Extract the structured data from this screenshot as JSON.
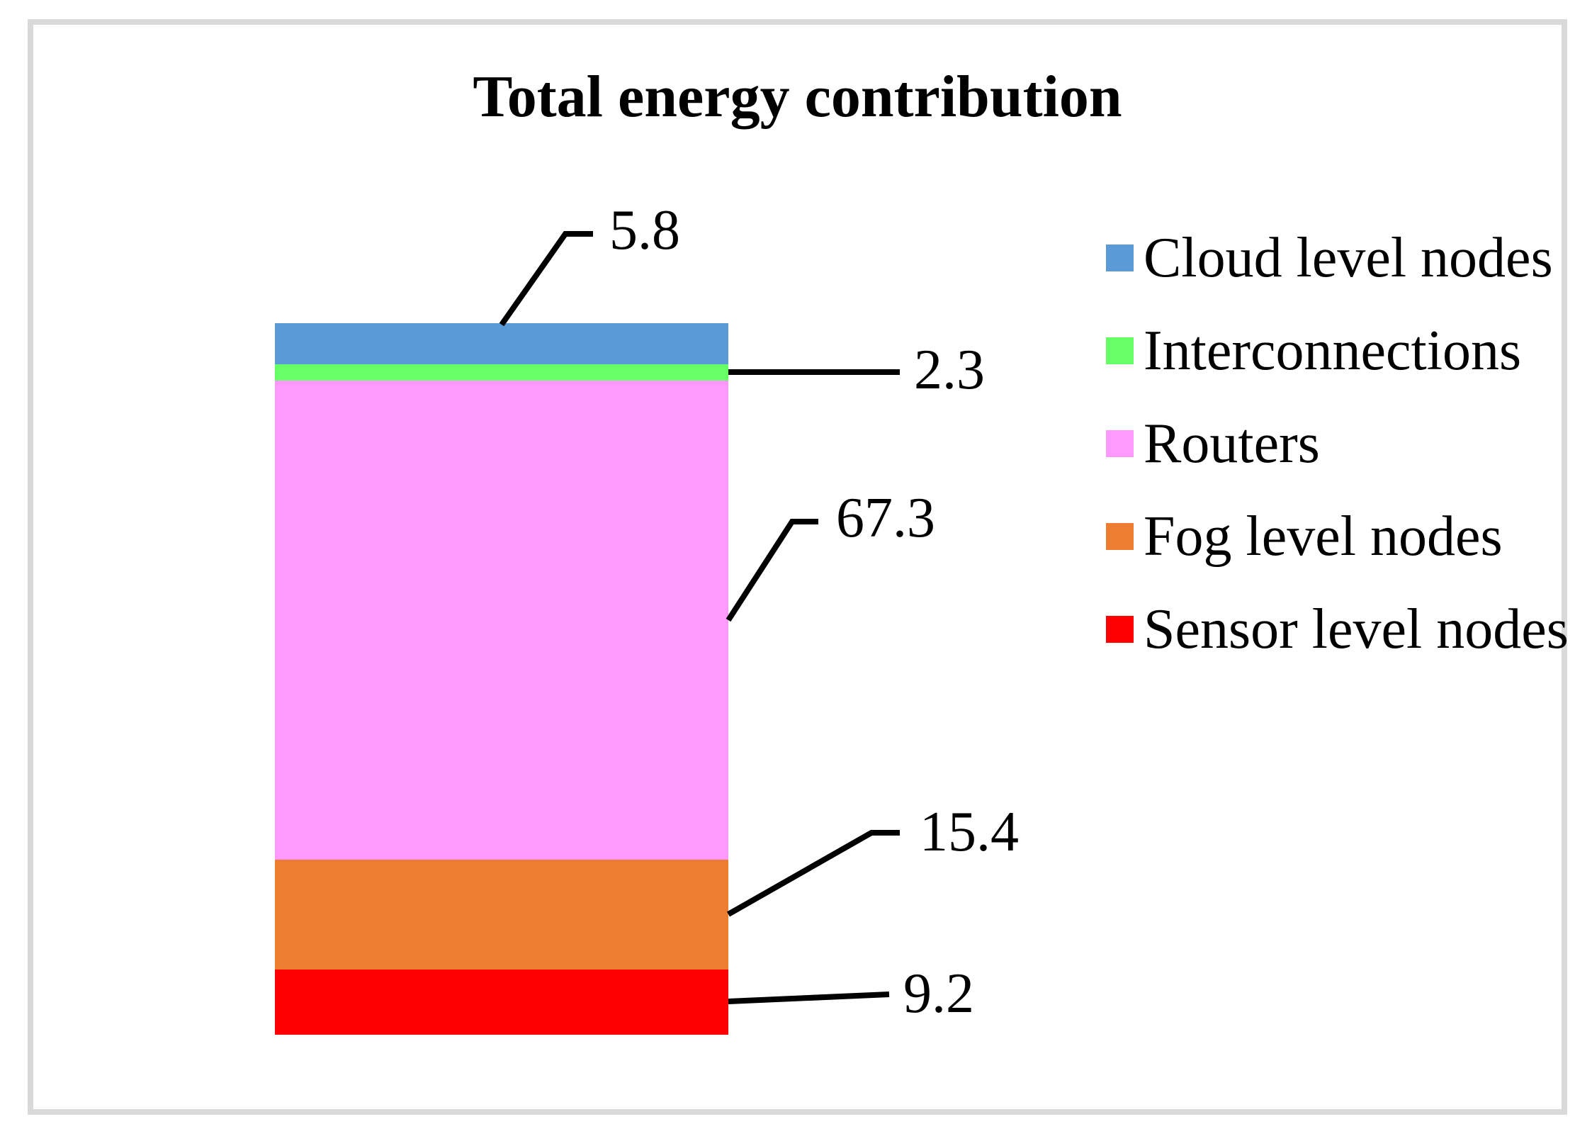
{
  "chart_data": {
    "type": "bar",
    "subtype": "stacked-column",
    "title": "Total energy contribution",
    "categories": [
      ""
    ],
    "total": 100,
    "grid": false,
    "axes_visible": false,
    "legend_position": "right",
    "frame_color": "#d9d9d9",
    "leader_line_color": "#000000",
    "series": [
      {
        "name": "Cloud level nodes",
        "values": [
          5.8
        ],
        "label": "5.8",
        "color": "#5b9bd5"
      },
      {
        "name": "Interconnections",
        "values": [
          2.3
        ],
        "label": "2.3",
        "color": "#66ff66"
      },
      {
        "name": "Routers",
        "values": [
          67.3
        ],
        "label": "67.3",
        "color": "#ff99ff"
      },
      {
        "name": "Fog level nodes",
        "values": [
          15.4
        ],
        "label": "15.4",
        "color": "#ed7d31"
      },
      {
        "name": "Sensor level nodes",
        "values": [
          9.2
        ],
        "label": "9.2",
        "color": "#ff0000"
      }
    ]
  }
}
